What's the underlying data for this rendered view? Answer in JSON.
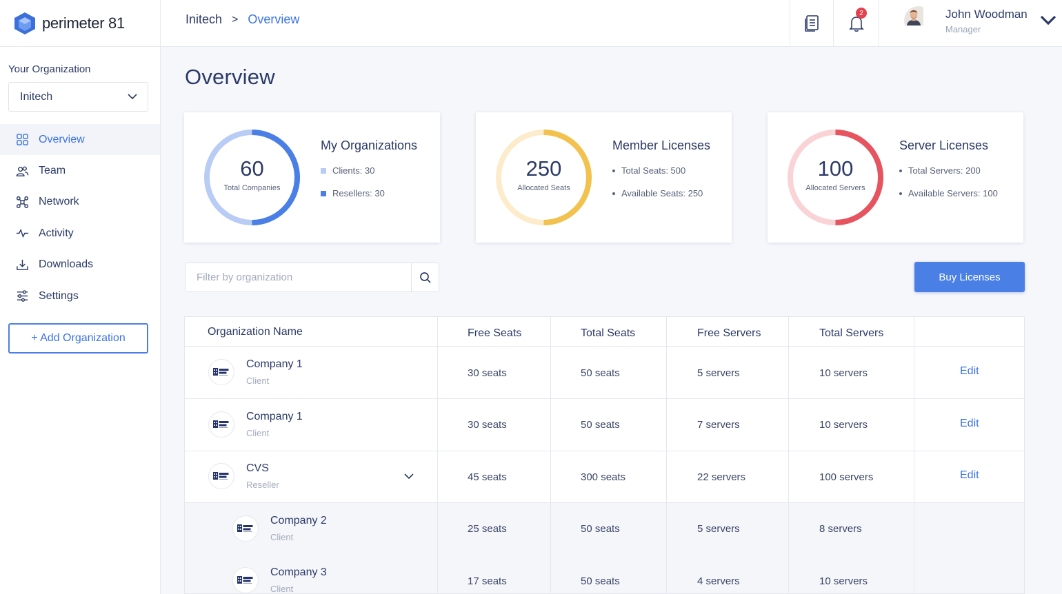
{
  "brand": {
    "name": "perimeter 81"
  },
  "sidebar": {
    "org_label": "Your Organization",
    "org_selected": "Initech",
    "items": [
      {
        "label": "Overview",
        "icon": "grid-icon",
        "active": true
      },
      {
        "label": "Team",
        "icon": "team-icon"
      },
      {
        "label": "Network",
        "icon": "network-icon"
      },
      {
        "label": "Activity",
        "icon": "activity-icon"
      },
      {
        "label": "Downloads",
        "icon": "download-icon"
      },
      {
        "label": "Settings",
        "icon": "sliders-icon"
      }
    ],
    "add_org": "+ Add Organization"
  },
  "header": {
    "breadcrumb": [
      "Initech",
      "Overview"
    ],
    "breadcrumb_sep": ">",
    "notification_count": "2",
    "user": {
      "name": "John Woodman",
      "role": "Manager"
    }
  },
  "main": {
    "title": "Overview",
    "cards": [
      {
        "number": "60",
        "caption": "Total Companies",
        "title": "My Organizations",
        "line1": "Clients: 30",
        "line2": "Resellers: 30",
        "ring_fraction": 0.5,
        "color": "#4a7fe6",
        "light": "#b8ccf5"
      },
      {
        "number": "250",
        "caption": "Allocated Seats",
        "title": "Member Licenses",
        "line1": "Total Seats: 500",
        "line2": "Available Seats: 250",
        "ring_fraction": 0.5,
        "color": "#f2c14e",
        "light": "#fdeccb"
      },
      {
        "number": "100",
        "caption": "Allocated Servers",
        "title": "Server Licenses",
        "line1": "Total Servers: 200",
        "line2": "Available Servers: 100",
        "ring_fraction": 0.5,
        "color": "#e5545f",
        "light": "#f9d3d6"
      }
    ],
    "filter_placeholder": "Filter by organization",
    "buy_button": "Buy Licenses",
    "table": {
      "columns": [
        "Organization Name",
        "Free Seats",
        "Total Seats",
        "Free Servers",
        "Total Servers"
      ],
      "rows": [
        {
          "name": "Company 1",
          "type": "Client",
          "free_seats": "30 seats",
          "total_seats": "50 seats",
          "free_servers": "5 servers",
          "total_servers": "10 servers",
          "action": "Edit"
        },
        {
          "name": "Company 1",
          "type": "Client",
          "free_seats": "30 seats",
          "total_seats": "50 seats",
          "free_servers": "7 servers",
          "total_servers": "10 servers",
          "action": "Edit"
        },
        {
          "name": "CVS",
          "type": "Reseller",
          "free_seats": "45 seats",
          "total_seats": "300 seats",
          "free_servers": "22 servers",
          "total_servers": "100 servers",
          "action": "Edit",
          "expandable": true
        },
        {
          "name": "Company 2",
          "type": "Client",
          "free_seats": "25 seats",
          "total_seats": "50 seats",
          "free_servers": "5 servers",
          "total_servers": "8 servers",
          "sub": true
        },
        {
          "name": "Company 3",
          "type": "Client",
          "free_seats": "17 seats",
          "total_seats": "50 seats",
          "free_servers": "4 servers",
          "total_servers": "10 servers",
          "sub": true
        }
      ]
    }
  }
}
